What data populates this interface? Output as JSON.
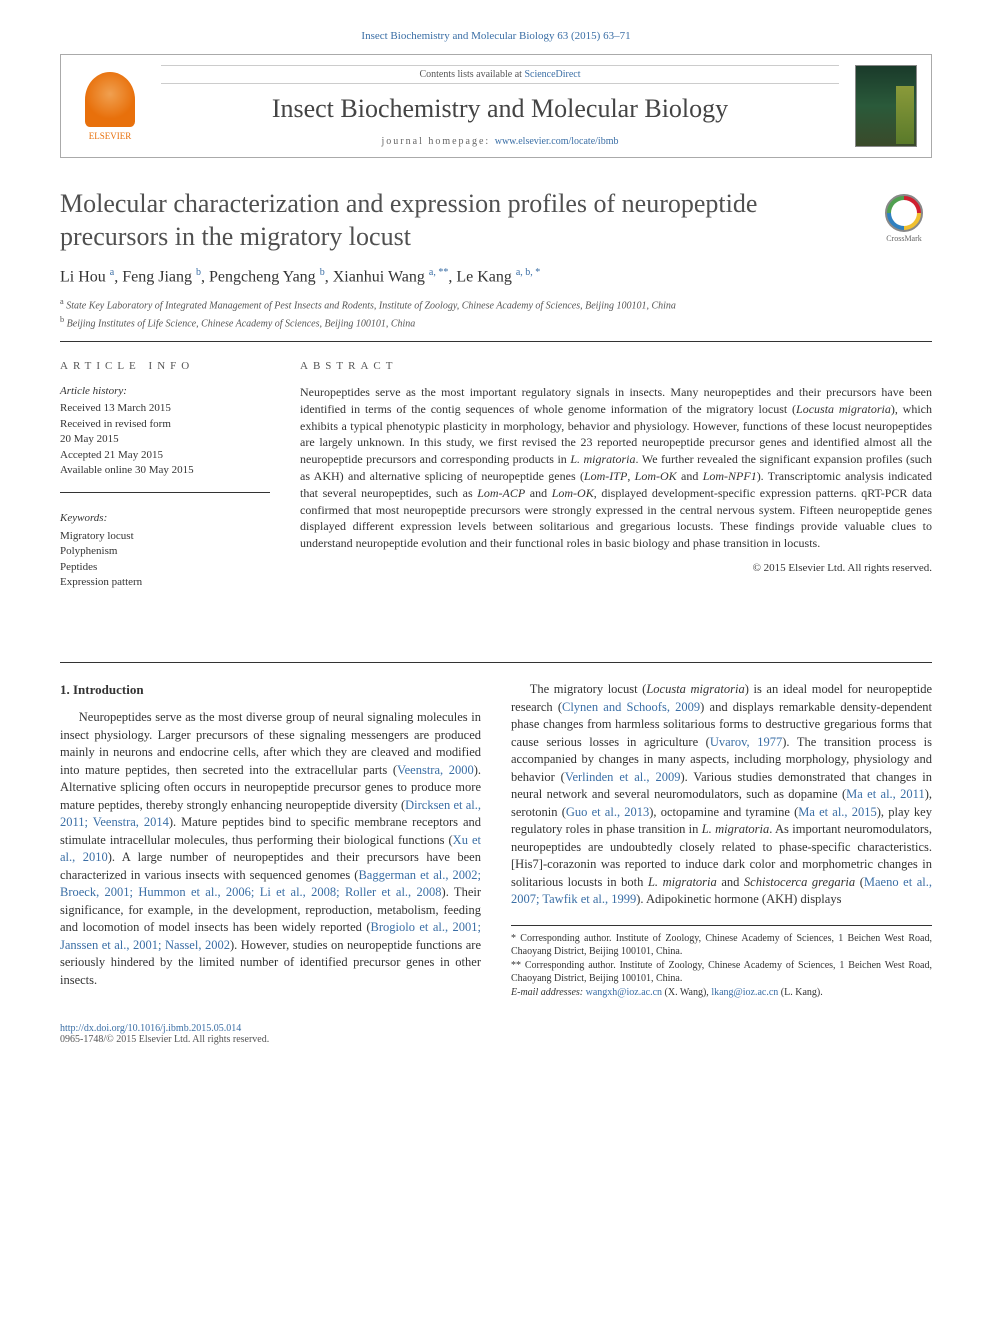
{
  "journal_ref": "Insect Biochemistry and Molecular Biology 63 (2015) 63–71",
  "header": {
    "publisher": "ELSEVIER",
    "contents_prefix": "Contents lists available at ",
    "contents_link": "ScienceDirect",
    "journal_name": "Insect Biochemistry and Molecular Biology",
    "homepage_prefix": "journal homepage: ",
    "homepage_url": "www.elsevier.com/locate/ibmb"
  },
  "article": {
    "title": "Molecular characterization and expression profiles of neuropeptide precursors in the migratory locust",
    "crossmark": "CrossMark",
    "authors_html": "Li Hou <sup>a</sup>, Feng Jiang <sup>b</sup>, Pengcheng Yang <sup>b</sup>, Xianhui Wang <sup>a, **</sup>, Le Kang <sup>a, b, *</sup>",
    "affiliations": [
      "a State Key Laboratory of Integrated Management of Pest Insects and Rodents, Institute of Zoology, Chinese Academy of Sciences, Beijing 100101, China",
      "b Beijing Institutes of Life Science, Chinese Academy of Sciences, Beijing 100101, China"
    ]
  },
  "info": {
    "heading": "ARTICLE INFO",
    "history_head": "Article history:",
    "history": [
      "Received 13 March 2015",
      "Received in revised form",
      "20 May 2015",
      "Accepted 21 May 2015",
      "Available online 30 May 2015"
    ],
    "keywords_head": "Keywords:",
    "keywords": [
      "Migratory locust",
      "Polyphenism",
      "Peptides",
      "Expression pattern"
    ]
  },
  "abstract": {
    "heading": "ABSTRACT",
    "copyright": "© 2015 Elsevier Ltd. All rights reserved."
  },
  "section1_head": "1. Introduction",
  "footnotes": {
    "corr1": "* Corresponding author. Institute of Zoology, Chinese Academy of Sciences, 1 Beichen West Road, Chaoyang District, Beijing 100101, China.",
    "corr2": "** Corresponding author. Institute of Zoology, Chinese Academy of Sciences, 1 Beichen West Road, Chaoyang District, Beijing 100101, China.",
    "email_label": "E-mail addresses: ",
    "email1": "wangxh@ioz.ac.cn",
    "email1_who": " (X. Wang), ",
    "email2": "lkang@ioz.ac.cn",
    "email2_who": " (L. Kang)."
  },
  "footer": {
    "doi": "http://dx.doi.org/10.1016/j.ibmb.2015.05.014",
    "issn": "0965-1748/© 2015 Elsevier Ltd. All rights reserved."
  },
  "colors": {
    "link": "#3a6ea5",
    "elsevier_orange": "#e8700b",
    "text": "#333333",
    "heading_gray": "#505050"
  }
}
